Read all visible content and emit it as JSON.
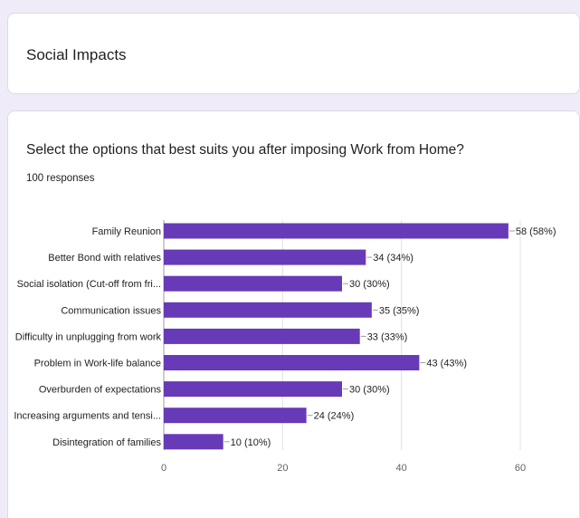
{
  "section": {
    "title": "Social Impacts"
  },
  "question": {
    "title": "Select the options that best suits you after imposing Work from Home?",
    "responses": "100 responses"
  },
  "colors": {
    "bar": "#673ab7",
    "grid": "#e0e0e0",
    "background": "#f0ebf8"
  },
  "chart_data": {
    "type": "bar",
    "orientation": "horizontal",
    "categories": [
      "Family Reunion",
      "Better Bond with relatives",
      "Social isolation (Cut-off from fri...",
      "Communication issues",
      "Difficulty in unplugging from work",
      "Problem in Work-life balance",
      "Overburden of expectations",
      "Increasing arguments and tensi...",
      "Disintegration of families"
    ],
    "values": [
      58,
      34,
      30,
      35,
      33,
      43,
      30,
      24,
      10
    ],
    "value_labels": [
      "58 (58%)",
      "34 (34%)",
      "30 (30%)",
      "35 (35%)",
      "33 (33%)",
      "43 (43%)",
      "30 (30%)",
      "24 (24%)",
      "10 (10%)"
    ],
    "xlim": [
      0,
      60
    ],
    "xticks": [
      0,
      20,
      40,
      60
    ],
    "grid": true
  }
}
